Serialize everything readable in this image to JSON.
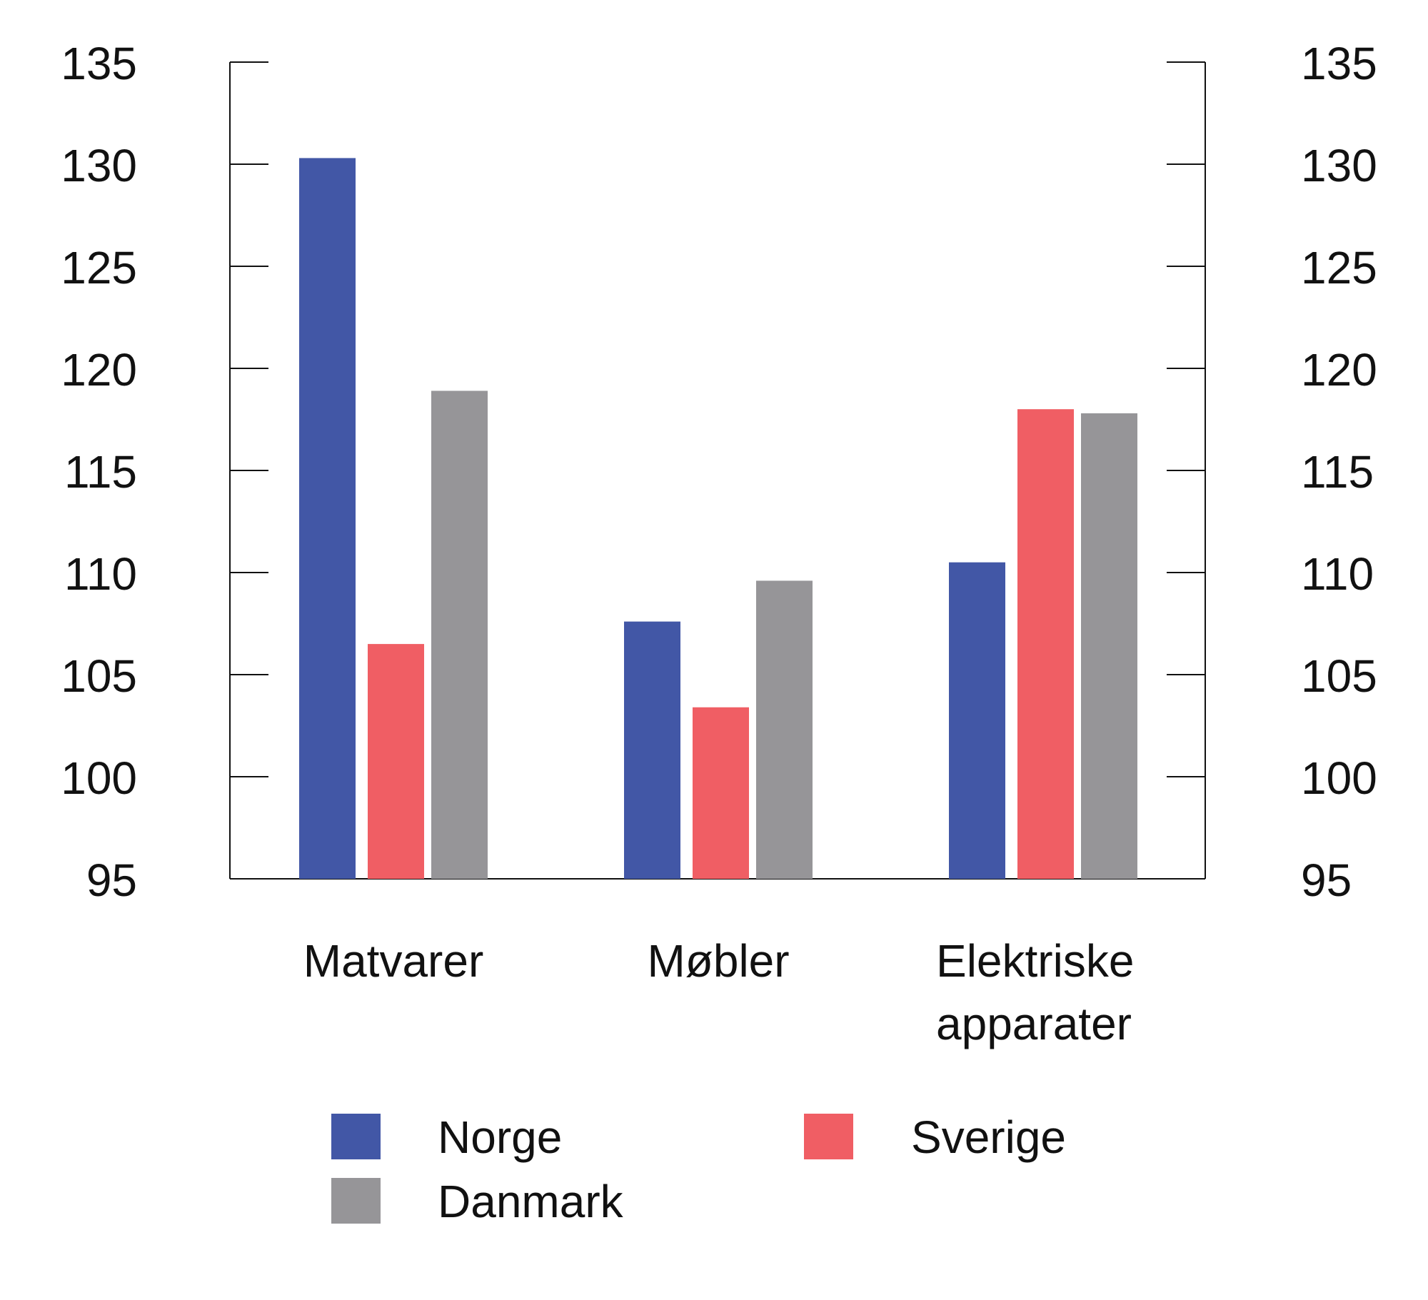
{
  "chart_data": {
    "type": "bar",
    "title": "",
    "xlabel": "",
    "ylabel": "",
    "categories": [
      [
        "Matvarer"
      ],
      [
        "Møbler"
      ],
      [
        "Elektriske",
        "apparater"
      ]
    ],
    "series": [
      {
        "name": "Norge",
        "color": "#4257a6",
        "values": [
          130.3,
          107.6,
          110.5
        ]
      },
      {
        "name": "Sverige",
        "color": "#f05e64",
        "values": [
          106.5,
          103.4,
          118.0
        ]
      },
      {
        "name": "Danmark",
        "color": "#969598",
        "values": [
          118.9,
          109.6,
          117.8
        ]
      }
    ],
    "ylim": [
      95,
      135
    ],
    "yticks": [
      "95",
      "100",
      "105",
      "110",
      "115",
      "120",
      "125",
      "130",
      "135"
    ],
    "secondary_yaxis": true,
    "grid": false,
    "legend_position": "bottom"
  }
}
